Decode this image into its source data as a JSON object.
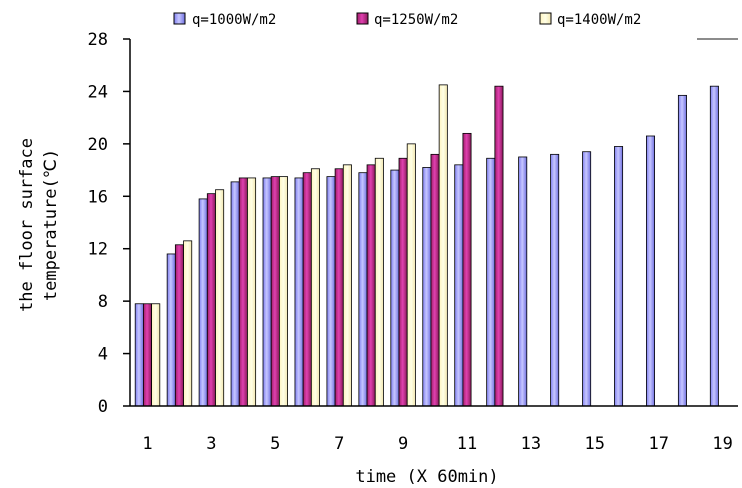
{
  "chart_data": {
    "type": "bar",
    "title": "",
    "xlabel": "time (X 60min)",
    "ylabel_lines": [
      "the floor surface",
      "temperature(℃)"
    ],
    "ylim": [
      0,
      28
    ],
    "y_ticks": [
      0,
      4,
      8,
      12,
      16,
      20,
      24,
      28
    ],
    "categories": [
      1,
      2,
      3,
      4,
      5,
      6,
      7,
      8,
      9,
      10,
      11,
      12,
      13,
      14,
      15,
      16,
      17,
      18,
      19
    ],
    "x_tick_labels": [
      "1",
      "3",
      "5",
      "7",
      "9",
      "11",
      "13",
      "15",
      "17",
      "19"
    ],
    "legend_position": "top",
    "series": [
      {
        "name": "q=1000W/m2",
        "color": "#9999ff",
        "values": [
          7.8,
          11.6,
          15.8,
          17.1,
          17.4,
          17.4,
          17.5,
          17.8,
          18.0,
          18.2,
          18.4,
          18.9,
          19.0,
          19.2,
          19.4,
          19.8,
          20.6,
          23.7,
          24.4
        ]
      },
      {
        "name": "q=1250W/m2",
        "color": "#993366",
        "values": [
          7.8,
          12.3,
          16.2,
          17.4,
          17.5,
          17.8,
          18.1,
          18.4,
          18.9,
          19.2,
          20.8,
          24.4,
          null,
          null,
          null,
          null,
          null,
          null,
          null
        ]
      },
      {
        "name": "q=1400W/m2",
        "color": "#ffffcc",
        "values": [
          7.8,
          12.6,
          16.5,
          17.4,
          17.5,
          18.1,
          18.4,
          18.9,
          20.0,
          24.5,
          null,
          null,
          null,
          null,
          null,
          null,
          null,
          null,
          null
        ]
      }
    ]
  }
}
